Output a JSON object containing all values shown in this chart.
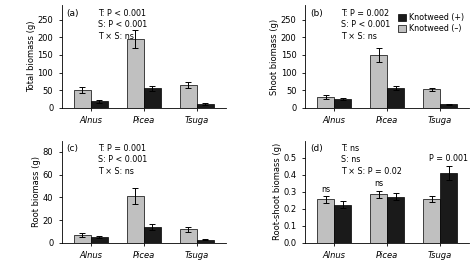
{
  "panels": {
    "a": {
      "title": "(a)",
      "ylabel": "Total biomass (g)",
      "stats": "T: P < 0.001\nS: P < 0.001\nT × S: ns",
      "ylim": [
        0,
        290
      ],
      "yticks": [
        0,
        50,
        100,
        150,
        200,
        250
      ],
      "groups": [
        "Alnus",
        "Picea",
        "Tsuga"
      ],
      "knotweed_minus": [
        50,
        195,
        65
      ],
      "knotweed_plus": [
        18,
        55,
        12
      ],
      "err_minus": [
        8,
        25,
        8
      ],
      "err_plus": [
        3,
        8,
        3
      ]
    },
    "b": {
      "title": "(b)",
      "ylabel": "Shoot biomass (g)",
      "stats": "T: P = 0.002\nS: P < 0.001\nT × S: ns",
      "ylim": [
        0,
        290
      ],
      "yticks": [
        0,
        50,
        100,
        150,
        200,
        250
      ],
      "groups": [
        "Alnus",
        "Picea",
        "Tsuga"
      ],
      "knotweed_minus": [
        30,
        150,
        52
      ],
      "knotweed_plus": [
        25,
        57,
        10
      ],
      "err_minus": [
        5,
        20,
        5
      ],
      "err_plus": [
        4,
        6,
        2
      ]
    },
    "c": {
      "title": "(c)",
      "ylabel": "Root biomass (g)",
      "stats": "T: P = 0.001\nS: P < 0.001\nT × S: ns",
      "ylim": [
        0,
        90
      ],
      "yticks": [
        0,
        20,
        40,
        60,
        80
      ],
      "groups": [
        "Alnus",
        "Picea",
        "Tsuga"
      ],
      "knotweed_minus": [
        7,
        41,
        12
      ],
      "knotweed_plus": [
        5,
        14,
        3
      ],
      "err_minus": [
        1.5,
        7,
        2
      ],
      "err_plus": [
        1,
        3,
        0.5
      ]
    },
    "d": {
      "title": "(d)",
      "ylabel": "Root-shoot biomass (g)",
      "stats": "T: ns\nS: ns\nT × S: P = 0.02",
      "ylim": [
        0,
        0.6
      ],
      "yticks": [
        0.0,
        0.1,
        0.2,
        0.3,
        0.4,
        0.5
      ],
      "groups": [
        "Alnus",
        "Picea",
        "Tsuga"
      ],
      "knotweed_minus": [
        0.255,
        0.285,
        0.26
      ],
      "knotweed_plus": [
        0.225,
        0.27,
        0.41
      ],
      "err_minus": [
        0.018,
        0.022,
        0.018
      ],
      "err_plus": [
        0.02,
        0.02,
        0.04
      ],
      "ns_labels": [
        "ns",
        "ns",
        ""
      ],
      "sig_label": "P = 0.001"
    }
  },
  "color_plus": "#1a1a1a",
  "color_minus": "#c0c0c0",
  "bar_width": 0.32,
  "legend_labels": [
    "Knotweed (+)",
    "Knotweed (–)"
  ],
  "font_size": 6.0,
  "stats_font_size": 5.8
}
